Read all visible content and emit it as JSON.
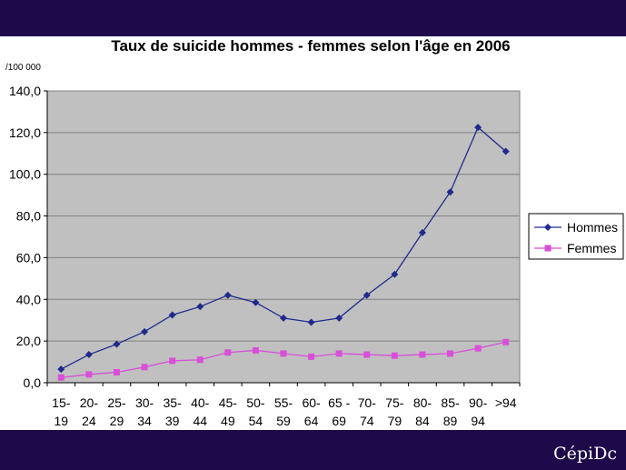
{
  "chart_data": {
    "type": "line",
    "title": "Taux de suicide hommes - femmes selon l'âge en 2006",
    "ylabel": "/100 000",
    "xlabel": "",
    "ylim": [
      0,
      140
    ],
    "yticks": [
      "0,0",
      "20,0",
      "40,0",
      "60,0",
      "80,0",
      "100,0",
      "120,0",
      "140,0"
    ],
    "grid": true,
    "legend": "right",
    "categories": [
      [
        "15-",
        "19"
      ],
      [
        "20-",
        "24"
      ],
      [
        "25-",
        "29"
      ],
      [
        "30-",
        "34"
      ],
      [
        "35-",
        "39"
      ],
      [
        "40-",
        "44"
      ],
      [
        "45-",
        "49"
      ],
      [
        "50-",
        "54"
      ],
      [
        "55-",
        "59"
      ],
      [
        "60-",
        "64"
      ],
      [
        "65 -",
        "69"
      ],
      [
        "70-",
        "74"
      ],
      [
        "75-",
        "79"
      ],
      [
        "80-",
        "84"
      ],
      [
        "85-",
        "89"
      ],
      [
        "90-",
        "94"
      ],
      [
        ">94",
        ""
      ]
    ],
    "series": [
      {
        "name": "Hommes",
        "color": "#1f2a8c",
        "marker": "diamond",
        "values": [
          6.5,
          13.5,
          18.5,
          24.5,
          32.5,
          36.5,
          42,
          38.5,
          31,
          29,
          31,
          42,
          52,
          72,
          91.5,
          122.5,
          111
        ]
      },
      {
        "name": "Femmes",
        "color": "#d94fd9",
        "marker": "square",
        "values": [
          2.5,
          4,
          5,
          7.5,
          10.5,
          11,
          14.5,
          15.5,
          14,
          12.5,
          14,
          13.5,
          13,
          13.5,
          14,
          16.5,
          19.5
        ]
      }
    ]
  },
  "footer": {
    "logo_text": "CépiDc"
  }
}
